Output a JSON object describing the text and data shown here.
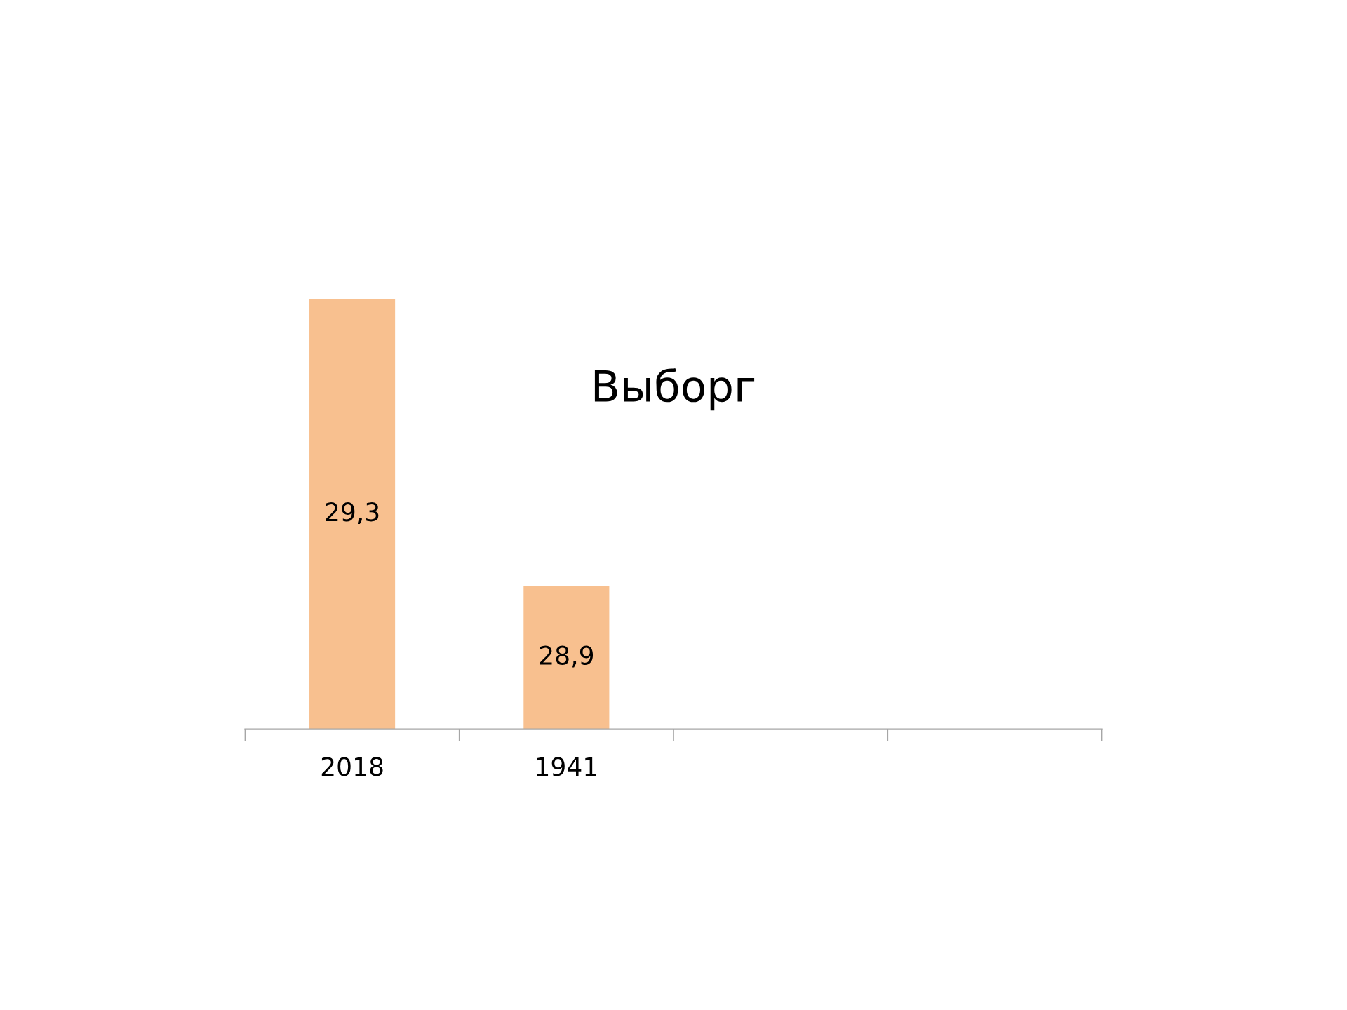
{
  "chart_data": {
    "type": "bar",
    "title": "Выборг",
    "categories": [
      "2018",
      "1941",
      null,
      null
    ],
    "values": [
      29.3,
      28.9,
      null,
      null
    ],
    "value_labels": [
      "29,3",
      "28,9",
      null,
      null
    ],
    "ylim": [
      28.7,
      29.3
    ],
    "color": "#f8c08f",
    "tick_labels": "x"
  }
}
